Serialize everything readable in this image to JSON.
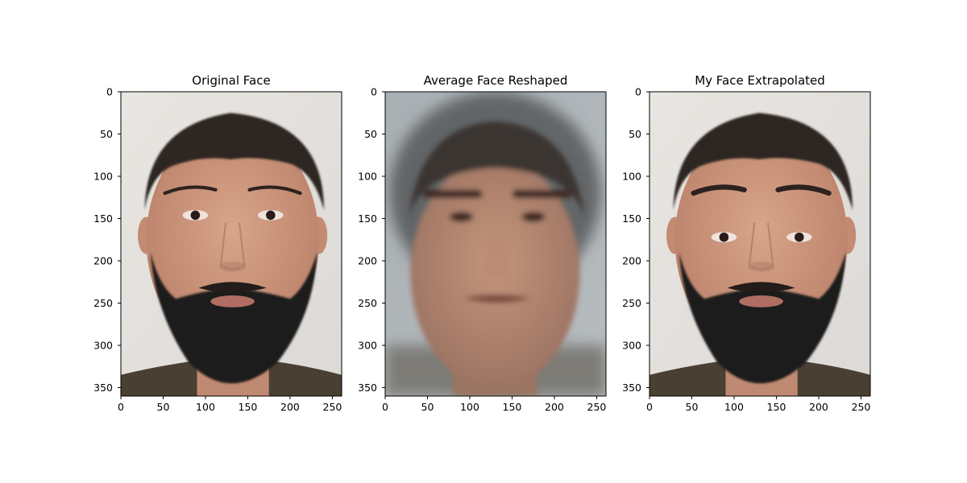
{
  "chart_data": [
    {
      "type": "image",
      "title": "Original Face",
      "image_extent": {
        "width": 261,
        "height": 360
      },
      "xlim": [
        0,
        261
      ],
      "ylim": [
        360,
        0
      ],
      "xticks": [
        0,
        50,
        100,
        150,
        200,
        250
      ],
      "yticks": [
        0,
        50,
        100,
        150,
        200,
        250,
        300,
        350
      ],
      "image": {
        "variant": "original",
        "beard": true,
        "blur": 0
      }
    },
    {
      "type": "image",
      "title": "Average Face Reshaped",
      "image_extent": {
        "width": 261,
        "height": 360
      },
      "xlim": [
        0,
        261
      ],
      "ylim": [
        360,
        0
      ],
      "xticks": [
        0,
        50,
        100,
        150,
        200,
        250
      ],
      "yticks": [
        0,
        50,
        100,
        150,
        200,
        250,
        300,
        350
      ],
      "image": {
        "variant": "average",
        "beard": false,
        "blur": 3
      }
    },
    {
      "type": "image",
      "title": "My Face Extrapolated",
      "image_extent": {
        "width": 261,
        "height": 360
      },
      "xlim": [
        0,
        261
      ],
      "ylim": [
        360,
        0
      ],
      "xticks": [
        0,
        50,
        100,
        150,
        200,
        250
      ],
      "yticks": [
        0,
        50,
        100,
        150,
        200,
        250,
        300,
        350
      ],
      "image": {
        "variant": "extrapolated",
        "beard": true,
        "blur": 0
      }
    }
  ]
}
